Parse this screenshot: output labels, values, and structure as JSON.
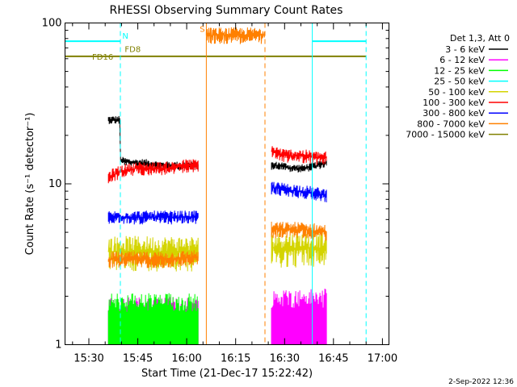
{
  "chart_data": {
    "type": "line",
    "title": "RHESSI Observing Summary Count Rates",
    "xlabel": "Start Time (21-Dec-17 15:22:42)",
    "ylabel": "Count Rate (s⁻¹ detector⁻¹)",
    "x_scale": "time",
    "y_scale": "log",
    "xlim": [
      "15:22:42",
      "17:02:00"
    ],
    "ylim": [
      1,
      100
    ],
    "x_ticks": [
      "15:30",
      "15:45",
      "16:00",
      "16:15",
      "16:30",
      "16:45",
      "17:00"
    ],
    "y_ticks": [
      "1",
      "10",
      "100"
    ],
    "legend_title": "Det 1,3, Att 0",
    "legend_position": "right",
    "timestamp": "2-Sep-2022 12:36",
    "series": [
      {
        "name": "3 - 6 keV",
        "color": "#000000",
        "segments": [
          {
            "t": [
              "15:36:00",
              "15:39:30",
              "15:39:40",
              "15:43:00",
              "15:47:00",
              "15:52:00",
              "15:56:00",
              "16:00:00",
              "16:03:30"
            ],
            "y": [
              25,
              25,
              14,
              13.5,
              13.5,
              13,
              13,
              13,
              13
            ]
          },
          {
            "t": [
              "16:26:00",
              "16:29:00",
              "16:32:00",
              "16:36:00",
              "16:40:00",
              "16:43:00"
            ],
            "y": [
              13,
              13,
              12.5,
              12.5,
              13,
              13.5
            ]
          }
        ]
      },
      {
        "name": "6 - 12 keV",
        "color": "#ff00ff",
        "segments": [
          {
            "t": [
              "15:36:00",
              "15:45:00",
              "15:55:00",
              "16:03:30"
            ],
            "y": [
              1.6,
              1.6,
              1.6,
              1.6
            ]
          },
          {
            "t": [
              "16:26:00",
              "16:35:00",
              "16:43:00"
            ],
            "y": [
              1.8,
              1.8,
              1.8
            ]
          }
        ]
      },
      {
        "name": "12 - 25 keV",
        "color": "#00ff00",
        "segments": [
          {
            "t": [
              "15:36:00",
              "15:45:00",
              "15:55:00",
              "16:03:30"
            ],
            "y": [
              1.7,
              1.7,
              1.7,
              1.7
            ]
          }
        ]
      },
      {
        "name": "25 - 50 keV",
        "color": "#00ffff",
        "segments": [
          {
            "t": [
              "15:22:42",
              "15:39:40"
            ],
            "y": [
              77,
              77
            ]
          },
          {
            "t": [
              "16:38:30",
              "16:55:00"
            ],
            "y": [
              77,
              77
            ]
          }
        ]
      },
      {
        "name": "50 - 100 keV",
        "color": "#d4d400",
        "segments": [
          {
            "t": [
              "15:36:00",
              "15:45:00",
              "15:55:00",
              "16:03:30"
            ],
            "y": [
              3.8,
              3.8,
              3.8,
              3.8
            ]
          },
          {
            "t": [
              "16:26:00",
              "16:35:00",
              "16:43:00"
            ],
            "y": [
              4,
              4,
              4
            ]
          }
        ]
      },
      {
        "name": "100 - 300 keV",
        "color": "#ff0000",
        "segments": [
          {
            "t": [
              "15:36:00",
              "15:40:00",
              "15:45:00",
              "15:50:00",
              "15:55:00",
              "16:00:00",
              "16:03:30"
            ],
            "y": [
              11,
              12,
              12.5,
              12.5,
              12.5,
              13,
              13
            ]
          },
          {
            "t": [
              "16:26:00",
              "16:30:00",
              "16:35:00",
              "16:40:00",
              "16:43:00"
            ],
            "y": [
              16,
              15,
              15,
              14.5,
              14.5
            ]
          }
        ]
      },
      {
        "name": "300 - 800 keV",
        "color": "#0000ff",
        "segments": [
          {
            "t": [
              "15:36:00",
              "15:45:00",
              "15:55:00",
              "16:03:30"
            ],
            "y": [
              6.2,
              6.2,
              6.2,
              6.2
            ]
          },
          {
            "t": [
              "16:26:00",
              "16:30:00",
              "16:35:00",
              "16:43:00"
            ],
            "y": [
              9.5,
              9.2,
              9,
              8.5
            ]
          }
        ]
      },
      {
        "name": "800 - 7000 keV",
        "color": "#ff8000",
        "segments": [
          {
            "t": [
              "15:36:00",
              "15:45:00",
              "15:55:00",
              "16:03:30"
            ],
            "y": [
              3.4,
              3.4,
              3.4,
              3.5
            ]
          },
          {
            "t": [
              "16:26:00",
              "16:35:00",
              "16:43:00"
            ],
            "y": [
              5.2,
              5.2,
              5
            ]
          },
          {
            "t": [
              "16:06:00",
              "16:24:00"
            ],
            "y": [
              84,
              84
            ]
          }
        ]
      },
      {
        "name": "7000 - 15000 keV",
        "color": "#808000",
        "segments": [
          {
            "t": [
              "15:22:42",
              "16:55:00"
            ],
            "y": [
              62,
              62
            ]
          }
        ]
      }
    ],
    "annotations": [
      {
        "text": "N",
        "t": "15:40:15",
        "y": 80,
        "color": "#00ffff"
      },
      {
        "text": "S",
        "t": "16:04:00",
        "y": 88,
        "color": "#ff8000"
      },
      {
        "text": "FD8",
        "t": "15:41:00",
        "y": 66,
        "color": "#808000"
      },
      {
        "text": "FD16",
        "t": "15:31:00",
        "y": 59,
        "color": "#808000"
      }
    ],
    "vertical_markers": [
      {
        "t": "15:39:40",
        "color": "#00ffff",
        "style": "dashed"
      },
      {
        "t": "16:06:00",
        "color": "#ff8000",
        "style": "solid"
      },
      {
        "t": "16:24:00",
        "color": "#ff8000",
        "style": "dashed"
      },
      {
        "t": "16:38:30",
        "color": "#00ffff",
        "style": "solid"
      },
      {
        "t": "16:55:00",
        "color": "#00ffff",
        "style": "dashed"
      }
    ]
  }
}
